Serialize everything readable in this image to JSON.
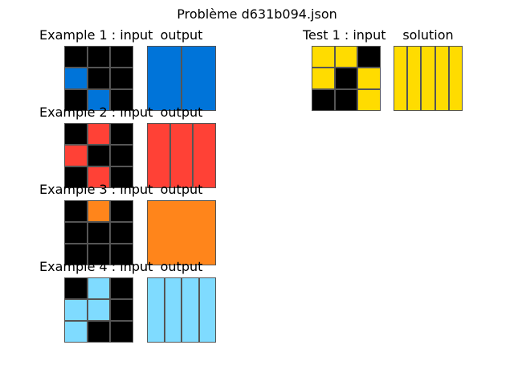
{
  "title": "Problème d631b094.json",
  "colors": {
    "0": "#000000",
    "1": "#0074D9",
    "2": "#FF4136",
    "3": "#FF851B",
    "4": "#7FDBFF",
    "5": "#FFDC00"
  },
  "examples": [
    {
      "input_label": "Example 1 : input",
      "output_label": "output",
      "input": [
        [
          0,
          0,
          0
        ],
        [
          1,
          0,
          0
        ],
        [
          0,
          1,
          0
        ]
      ],
      "output": [
        [
          1,
          1
        ]
      ]
    },
    {
      "input_label": "Example 2 : input",
      "output_label": "output",
      "input": [
        [
          0,
          2,
          0
        ],
        [
          2,
          0,
          0
        ],
        [
          0,
          2,
          0
        ]
      ],
      "output": [
        [
          2,
          2,
          2
        ]
      ]
    },
    {
      "input_label": "Example 3 : input",
      "output_label": "output",
      "input": [
        [
          0,
          3,
          0
        ],
        [
          0,
          0,
          0
        ],
        [
          0,
          0,
          0
        ]
      ],
      "output": [
        [
          3
        ]
      ]
    },
    {
      "input_label": "Example 4 : input",
      "output_label": "output",
      "input": [
        [
          0,
          4,
          0
        ],
        [
          4,
          4,
          0
        ],
        [
          4,
          0,
          0
        ]
      ],
      "output": [
        [
          4,
          4,
          4,
          4
        ]
      ]
    }
  ],
  "test": {
    "input_label": "Test 1 : input",
    "solution_label": "solution",
    "input": [
      [
        5,
        5,
        0
      ],
      [
        5,
        0,
        5
      ],
      [
        0,
        0,
        5
      ]
    ],
    "solution": [
      [
        5,
        5,
        5,
        5,
        5
      ]
    ]
  }
}
